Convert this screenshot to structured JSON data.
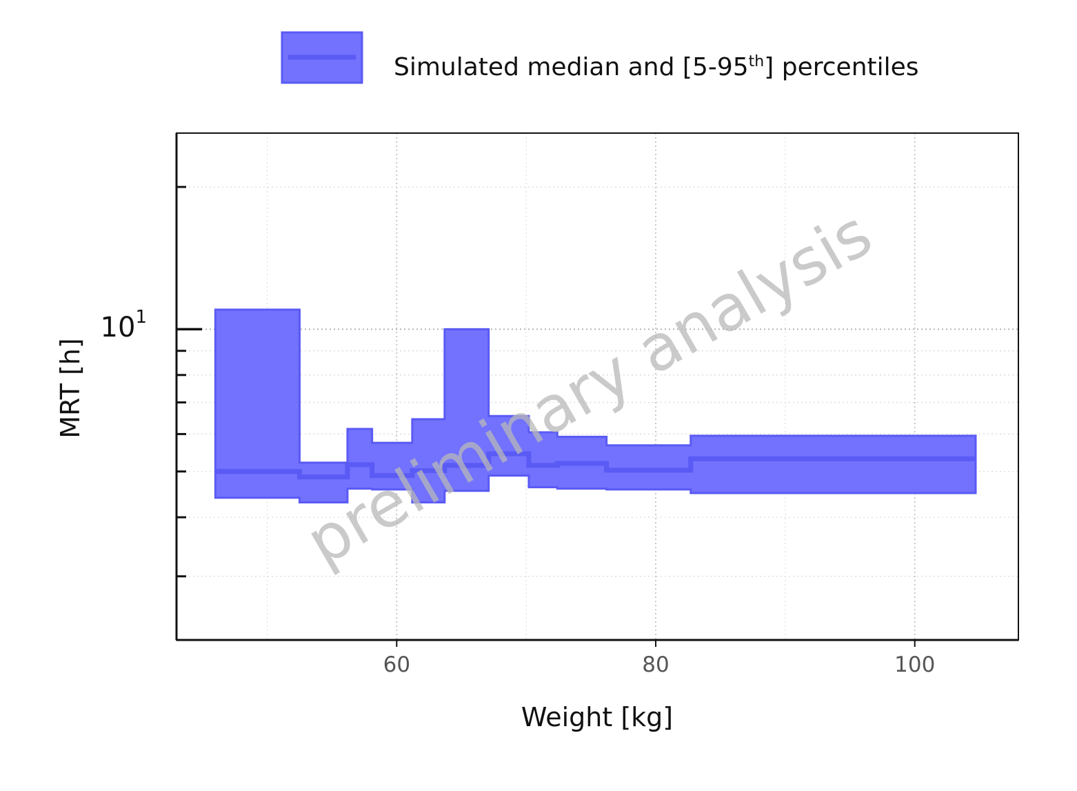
{
  "chart_data": {
    "type": "area",
    "xlabel": "Weight [kg]",
    "ylabel": "MRT [h]",
    "xlim": [
      43,
      108
    ],
    "ylim": [
      2.2,
      26
    ],
    "y_scale": "log",
    "x_ticks": [
      60,
      80,
      100
    ],
    "x_tick_labels": [
      "60",
      "80",
      "100"
    ],
    "y_major_tick": {
      "value": 10,
      "base_label": "10",
      "exponent_label": "1"
    },
    "y_minor_ticks": [
      3,
      4,
      5,
      6,
      7,
      8,
      9,
      20
    ],
    "grid": true,
    "legend": {
      "position": "top",
      "label_prefix": "Simulated median and [5-95",
      "label_sup": "th",
      "label_suffix": "] percentiles"
    },
    "series": [
      {
        "name": "Simulated median and [5-95th] percentiles",
        "color": "#5a5af5",
        "fill_color": "#7272fe",
        "bins": [
          {
            "x0": 46.0,
            "x1": 52.5,
            "median": 5.0,
            "p5": 4.4,
            "p95": 11.0
          },
          {
            "x0": 52.5,
            "x1": 56.2,
            "median": 4.87,
            "p5": 4.3,
            "p95": 5.22
          },
          {
            "x0": 56.2,
            "x1": 58.1,
            "median": 5.17,
            "p5": 4.6,
            "p95": 6.15
          },
          {
            "x0": 58.1,
            "x1": 61.2,
            "median": 4.9,
            "p5": 4.58,
            "p95": 5.75
          },
          {
            "x0": 61.2,
            "x1": 63.7,
            "median": 5.02,
            "p5": 4.3,
            "p95": 6.45
          },
          {
            "x0": 63.7,
            "x1": 67.1,
            "median": 5.15,
            "p5": 4.55,
            "p95": 10.0
          },
          {
            "x0": 67.1,
            "x1": 70.2,
            "median": 5.45,
            "p5": 4.9,
            "p95": 6.55
          },
          {
            "x0": 70.2,
            "x1": 72.4,
            "median": 5.15,
            "p5": 4.63,
            "p95": 6.05
          },
          {
            "x0": 72.4,
            "x1": 76.2,
            "median": 5.2,
            "p5": 4.6,
            "p95": 5.92
          },
          {
            "x0": 76.2,
            "x1": 82.7,
            "median": 5.03,
            "p5": 4.58,
            "p95": 5.68
          },
          {
            "x0": 82.7,
            "x1": 104.7,
            "median": 5.32,
            "p5": 4.5,
            "p95": 5.95
          }
        ]
      }
    ],
    "watermark": "preliminary analysis"
  }
}
